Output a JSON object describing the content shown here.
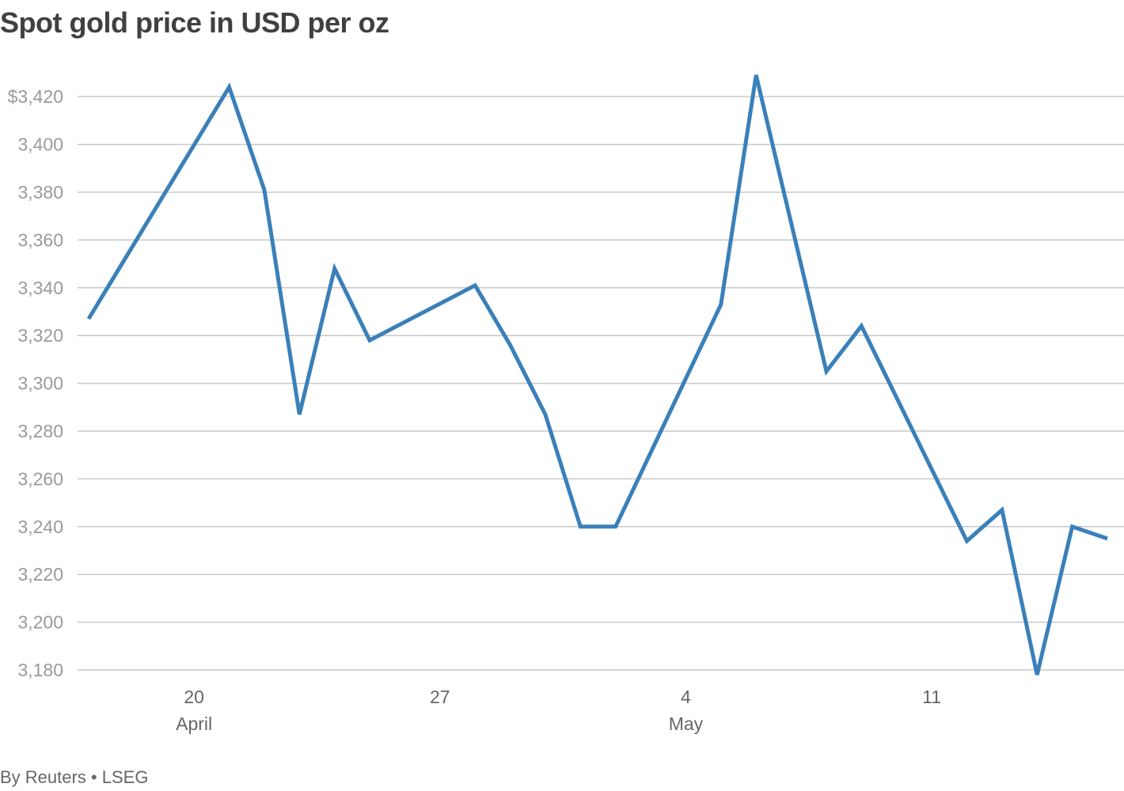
{
  "chart_data": {
    "type": "line",
    "title": "Spot gold price in USD per oz",
    "source": "By Reuters • LSEG",
    "xlabel": "",
    "ylabel": "",
    "ylim": [
      3170,
      3430
    ],
    "y_ticks": [
      3180,
      3200,
      3220,
      3240,
      3260,
      3280,
      3300,
      3320,
      3340,
      3360,
      3380,
      3400,
      3420
    ],
    "y_tick_labels": [
      "3,180",
      "3,200",
      "3,220",
      "3,240",
      "3,260",
      "3,280",
      "3,300",
      "3,320",
      "3,340",
      "3,360",
      "3,380",
      "3,400",
      "$3,420"
    ],
    "grid": true,
    "x_ticks": [
      {
        "date": "2025-04-20",
        "label": "20",
        "sublabel": "April"
      },
      {
        "date": "2025-04-27",
        "label": "27",
        "sublabel": ""
      },
      {
        "date": "2025-05-04",
        "label": "4",
        "sublabel": "May"
      },
      {
        "date": "2025-05-11",
        "label": "11",
        "sublabel": ""
      }
    ],
    "xlim": [
      "2025-04-17",
      "2025-05-17"
    ],
    "series": [
      {
        "color": "#3a80ba",
        "x": [
          "2025-04-17",
          "2025-04-21",
          "2025-04-22",
          "2025-04-23",
          "2025-04-24",
          "2025-04-25",
          "2025-04-28",
          "2025-04-29",
          "2025-04-30",
          "2025-05-01",
          "2025-05-02",
          "2025-05-05",
          "2025-05-06",
          "2025-05-07",
          "2025-05-08",
          "2025-05-09",
          "2025-05-12",
          "2025-05-13",
          "2025-05-14",
          "2025-05-15",
          "2025-05-16"
        ],
        "y": [
          3327,
          3424,
          3381,
          3287,
          3348,
          3318,
          3341,
          3316,
          3287,
          3240,
          3240,
          3333,
          3429,
          3367,
          3305,
          3324,
          3234,
          3247,
          3178,
          3240,
          3235
        ]
      }
    ]
  }
}
